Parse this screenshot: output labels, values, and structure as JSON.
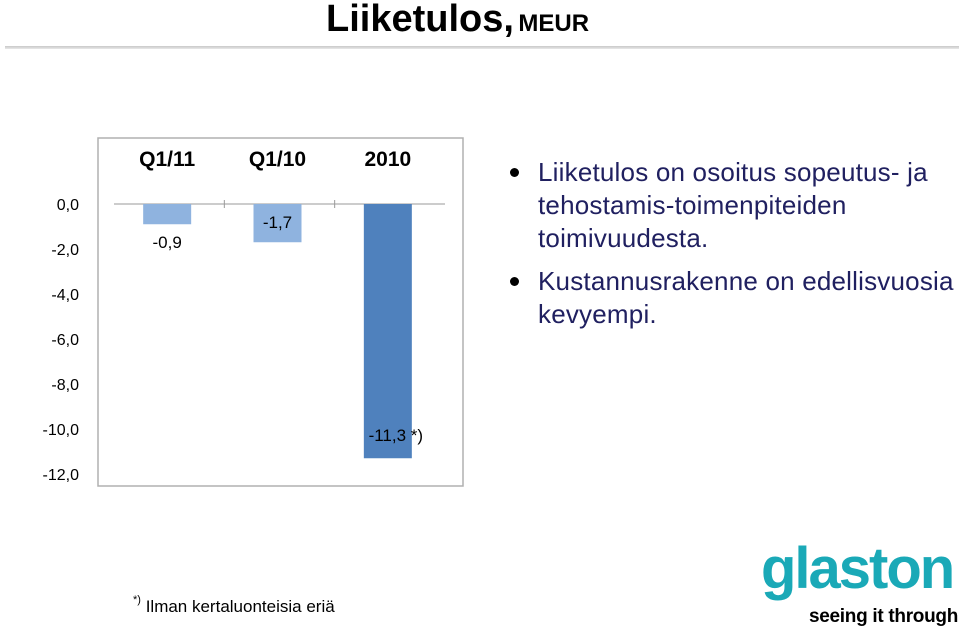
{
  "slide": {
    "title": "Liiketulos,",
    "title_unit": "MEUR"
  },
  "bullets": [
    "Liiketulos on osoitus sopeutus- ja tehostamis-toimenpiteiden toimivuudesta.",
    "Kustannusrakenne on edellisvuosia kevyempi."
  ],
  "footnote": {
    "marker": "*)",
    "text": "Ilman kertaluonteisia eriä"
  },
  "logo": {
    "wordmark": "glaston",
    "tagline": "seeing it through",
    "color": "#1aa9b7"
  },
  "chart_data": {
    "type": "bar",
    "categories": [
      "Q1/11",
      "Q1/10",
      "2010"
    ],
    "values": [
      -0.9,
      -1.7,
      -11.3
    ],
    "data_labels": [
      "-0,9",
      "-1,7",
      "-11,3 *)"
    ],
    "colors": [
      "#8fb3df",
      "#8fb3df",
      "#4f81bd"
    ],
    "ylim": [
      -12,
      0
    ],
    "yticks": [
      0,
      -2,
      -4,
      -6,
      -8,
      -10,
      -12
    ],
    "ytick_labels": [
      "0,0",
      "-2,0",
      "-4,0",
      "-6,0",
      "-8,0",
      "-10,0",
      "-12,0"
    ],
    "categories_position": "top",
    "grid": false,
    "legend": "none"
  }
}
